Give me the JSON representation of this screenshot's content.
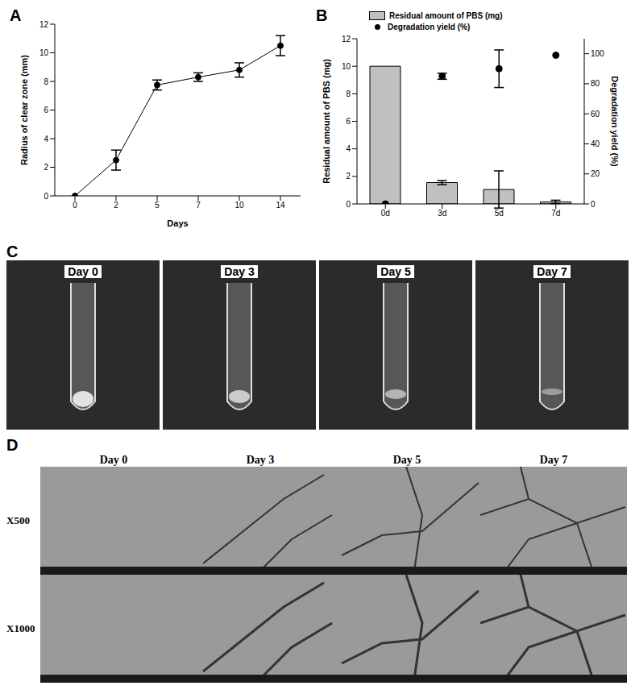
{
  "chart_data": [
    {
      "type": "line",
      "annotations": [
        "A"
      ],
      "x_label": "Days",
      "y_label": "Radius of clear zone (mm)",
      "categories": [
        "0",
        "2",
        "5",
        "7",
        "10",
        "14"
      ],
      "values": [
        0,
        2.5,
        7.75,
        8.3,
        8.8,
        10.5
      ],
      "errors": [
        0,
        0.7,
        0.35,
        0.3,
        0.5,
        0.7
      ],
      "color": "#000000",
      "marker": "circle",
      "ylim": [
        0,
        12
      ],
      "yticks": [
        0,
        2,
        4,
        6,
        8,
        10,
        12
      ]
    },
    {
      "type": "bar",
      "annotations": [
        "B"
      ],
      "y_label": "Residual amount of PBS (mg)",
      "y2_label": "Degradation yield (%)",
      "categories": [
        "0d",
        "3d",
        "5d",
        "7d"
      ],
      "series": [
        {
          "name": "Residual amount of PBS (mg)",
          "type": "bar",
          "color": "#c0c0c0",
          "values": [
            10,
            1.55,
            1.05,
            0.15
          ],
          "errors": [
            0,
            0.15,
            1.35,
            0.12
          ]
        },
        {
          "name": "Degradation yield (%)",
          "type": "scatter",
          "color": "#000000",
          "marker": "circle",
          "axis": "y2",
          "values": [
            0,
            85,
            90,
            99
          ],
          "errors": [
            0,
            2,
            12.5,
            0
          ]
        }
      ],
      "ylim": [
        0,
        12
      ],
      "yticks": [
        0,
        2,
        4,
        6,
        8,
        10,
        12
      ],
      "y2lim": [
        0,
        110
      ],
      "y2ticks": [
        0,
        20,
        40,
        60,
        80,
        100
      ],
      "legend": "upper left"
    }
  ],
  "photos": {
    "label": "C",
    "captions": [
      "Day 0",
      "Day 3",
      "Day 5",
      "Day 7"
    ]
  },
  "sem": {
    "label": "D",
    "columns": [
      "Day 0",
      "Day 3",
      "Day 5",
      "Day 7"
    ],
    "rows": [
      "X500",
      "X1000"
    ]
  }
}
